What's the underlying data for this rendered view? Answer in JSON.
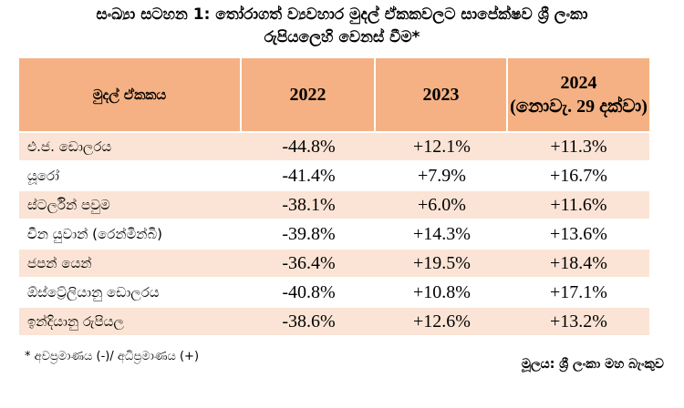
{
  "title": {
    "line1": "සංඛ්‍යා සටහන 1: තෝරාගත් ව්‍යවහාර මුදල් ඒකකවලට සාපේක්ෂව ශ්‍රී ලංකා",
    "line2": "රුපියලෙහි වෙනස් වීම*"
  },
  "table": {
    "headers": {
      "currency": "මුදල් ඒකකය",
      "y2022": "2022",
      "y2023": "2023",
      "y2024": "2024",
      "y2024_note": "(නොවැ. 29 දක්වා)"
    },
    "rows": [
      {
        "currency": "එ.ජ. ඩොලරය",
        "y2022": "-44.8%",
        "y2023": "+12.1%",
        "y2024": "+11.3%"
      },
      {
        "currency": "යූරෝ",
        "y2022": "-41.4%",
        "y2023": "+7.9%",
        "y2024": "+16.7%"
      },
      {
        "currency": "ස්ටර්ලින් පවුම",
        "y2022": "-38.1%",
        "y2023": "+6.0%",
        "y2024": "+11.6%"
      },
      {
        "currency": "චීන යුවාන් (රෙන්මින්බි)",
        "y2022": "-39.8%",
        "y2023": "+14.3%",
        "y2024": "+13.6%"
      },
      {
        "currency": "ජපන් යෙන්",
        "y2022": "-36.4%",
        "y2023": "+19.5%",
        "y2024": "+18.4%"
      },
      {
        "currency": "ඕස්ට්‍රේලියානු ඩොලරය",
        "y2022": "-40.8%",
        "y2023": "+10.8%",
        "y2024": "+17.1%"
      },
      {
        "currency": "ඉන්දියානු රුපියල",
        "y2022": "-38.6%",
        "y2023": "+12.6%",
        "y2024": "+13.2%"
      }
    ]
  },
  "footnote": "* අවප්‍රමාණය (-)/ අධිප්‍රමාණය (+)",
  "source": "මූලය: ශ්‍රී ලංකා මහ බැංකුව",
  "colors": {
    "header_bg": "#f5b183",
    "band_bg": "#fbe4d5"
  }
}
